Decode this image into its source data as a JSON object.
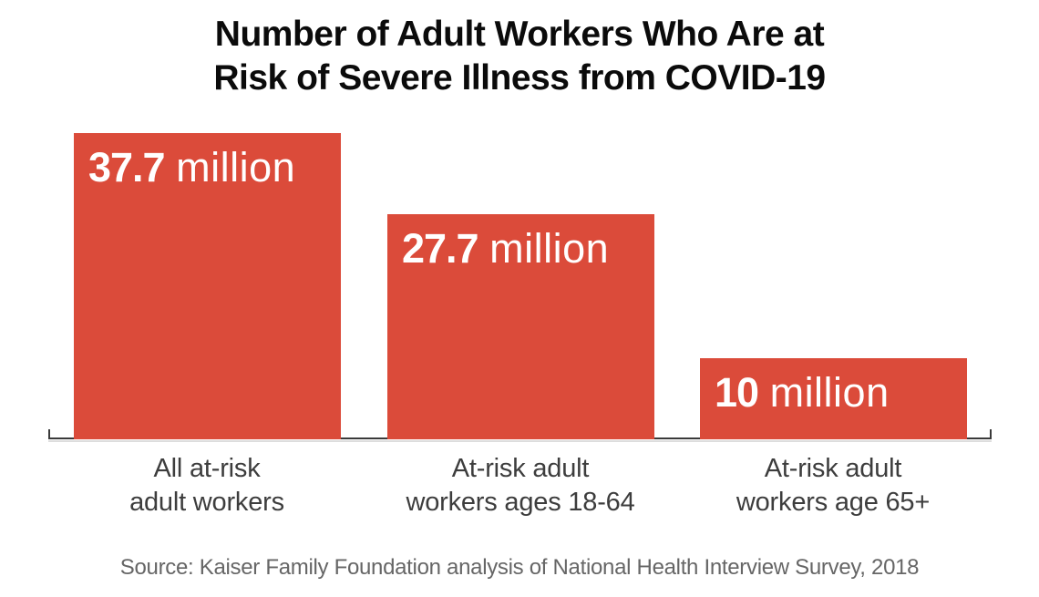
{
  "header": {
    "title_line1": "Number of Adult Workers Who Are at",
    "title_line2": "Risk of Severe Illness from COVID-19"
  },
  "bars": [
    {
      "number": "37.7",
      "unit": "million",
      "label_line1": "All at-risk",
      "label_line2": "adult workers"
    },
    {
      "number": "27.7",
      "unit": "million",
      "label_line1": "At-risk adult",
      "label_line2": "workers ages 18-64"
    },
    {
      "number": "10",
      "unit": "million",
      "label_line1": "At-risk adult",
      "label_line2": "workers age 65+"
    }
  ],
  "source": {
    "text": "Source: Kaiser Family Foundation analysis of National Health Interview Survey, 2018"
  },
  "colors": {
    "bar": "#db4b3a",
    "title_text": "#0b0b0b",
    "axis_line": "#3a3a3a",
    "axis_shadow": "#dddddd",
    "category_label_text": "#3d3d3d",
    "value_label_text": "#ffffff",
    "source_text": "#666666",
    "background": "#ffffff"
  },
  "chart_data": {
    "type": "bar",
    "title": "Number of Adult Workers Who Are at Risk of Severe Illness from COVID-19",
    "categories": [
      "All at-risk adult workers",
      "At-risk adult workers ages 18-64",
      "At-risk adult workers age 65+"
    ],
    "values": [
      37.7,
      27.7,
      10
    ],
    "unit": "million",
    "data_labels": [
      "37.7 million",
      "27.7 million",
      "10 million"
    ],
    "value_label_position": "inside-top-left",
    "bar_color": "#db4b3a",
    "orientation": "vertical",
    "xlabel": "",
    "ylabel": "",
    "ylim": [
      0,
      40
    ],
    "gridlines": false,
    "y_axis_shown": false,
    "x_axis_shown": true,
    "legend": "none",
    "pixels_per_million": 8.9,
    "source": "Source: Kaiser Family Foundation analysis of National Health Interview Survey, 2018"
  }
}
